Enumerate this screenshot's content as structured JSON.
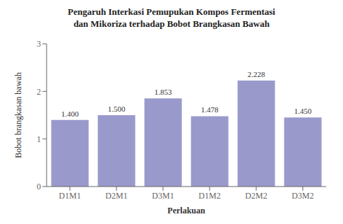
{
  "chart_data": {
    "type": "bar",
    "title": "Pengaruh Interkasi Pemupukan Kompos Fermentasi\ndan Mikoriza terhadap Bobot Brangkasan Bawah",
    "categories": [
      "D1M1",
      "D2M1",
      "D3M1",
      "D1M2",
      "D2M2",
      "D3M2"
    ],
    "values": [
      1.4,
      1.5,
      1.853,
      1.478,
      2.228,
      1.45
    ],
    "value_labels": [
      "1.400",
      "1.500",
      "1.853",
      "1.478",
      "2.228",
      "1.450"
    ],
    "data_labels": true,
    "color": "#9999cc",
    "xlabel": "Perlakuan",
    "ylabel": "Bobot brangkasan bawah",
    "ylim": [
      0,
      3
    ],
    "yticks": [
      0,
      1,
      2,
      3
    ],
    "grid": false
  }
}
